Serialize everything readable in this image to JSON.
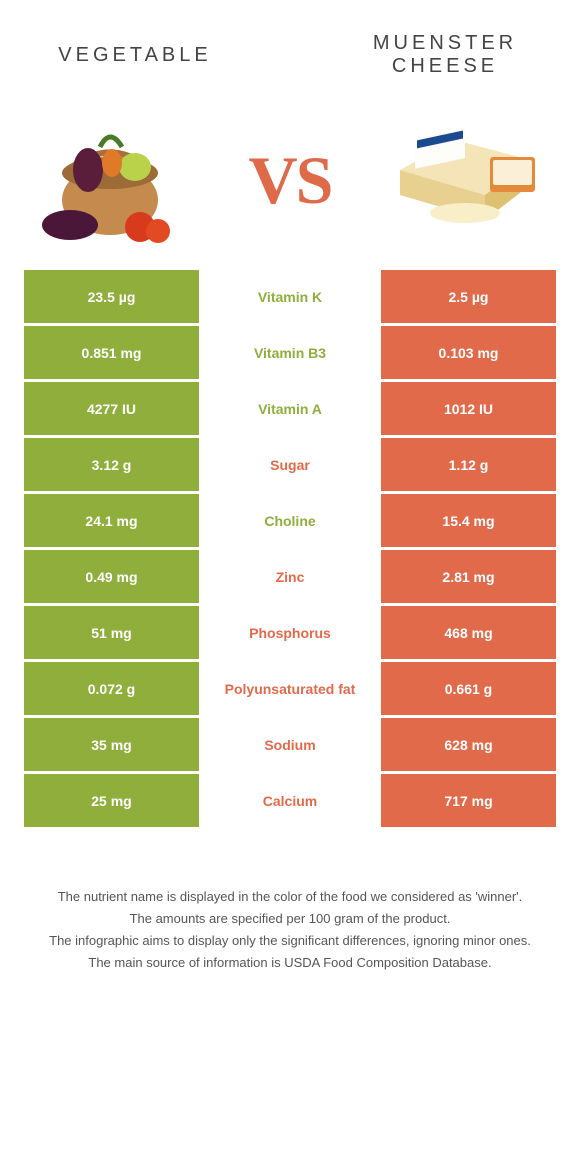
{
  "header": {
    "left_title": "VEGETABLE",
    "right_title": "MUENSTER CHEESE",
    "vs": "VS"
  },
  "colors": {
    "green": "#8fae3b",
    "orange": "#e16a4b",
    "vs": "#de6a4a"
  },
  "rows": [
    {
      "left": "23.5 µg",
      "label": "Vitamin K",
      "right": "2.5 µg",
      "winner": "green"
    },
    {
      "left": "0.851 mg",
      "label": "Vitamin B3",
      "right": "0.103 mg",
      "winner": "green"
    },
    {
      "left": "4277 IU",
      "label": "Vitamin A",
      "right": "1012 IU",
      "winner": "green"
    },
    {
      "left": "3.12 g",
      "label": "Sugar",
      "right": "1.12 g",
      "winner": "orange"
    },
    {
      "left": "24.1 mg",
      "label": "Choline",
      "right": "15.4 mg",
      "winner": "green"
    },
    {
      "left": "0.49 mg",
      "label": "Zinc",
      "right": "2.81 mg",
      "winner": "orange"
    },
    {
      "left": "51 mg",
      "label": "Phosphorus",
      "right": "468 mg",
      "winner": "orange"
    },
    {
      "left": "0.072 g",
      "label": "Polyunsaturated fat",
      "right": "0.661 g",
      "winner": "orange"
    },
    {
      "left": "35 mg",
      "label": "Sodium",
      "right": "628 mg",
      "winner": "orange"
    },
    {
      "left": "25 mg",
      "label": "Calcium",
      "right": "717 mg",
      "winner": "orange"
    }
  ],
  "footer": {
    "l1": "The nutrient name is displayed in the color of the food we considered as 'winner'.",
    "l2": "The amounts are specified per 100 gram of the product.",
    "l3": "The infographic aims to display only the significant differences, ignoring minor ones.",
    "l4": "The main source of information is USDA Food Composition Database."
  }
}
